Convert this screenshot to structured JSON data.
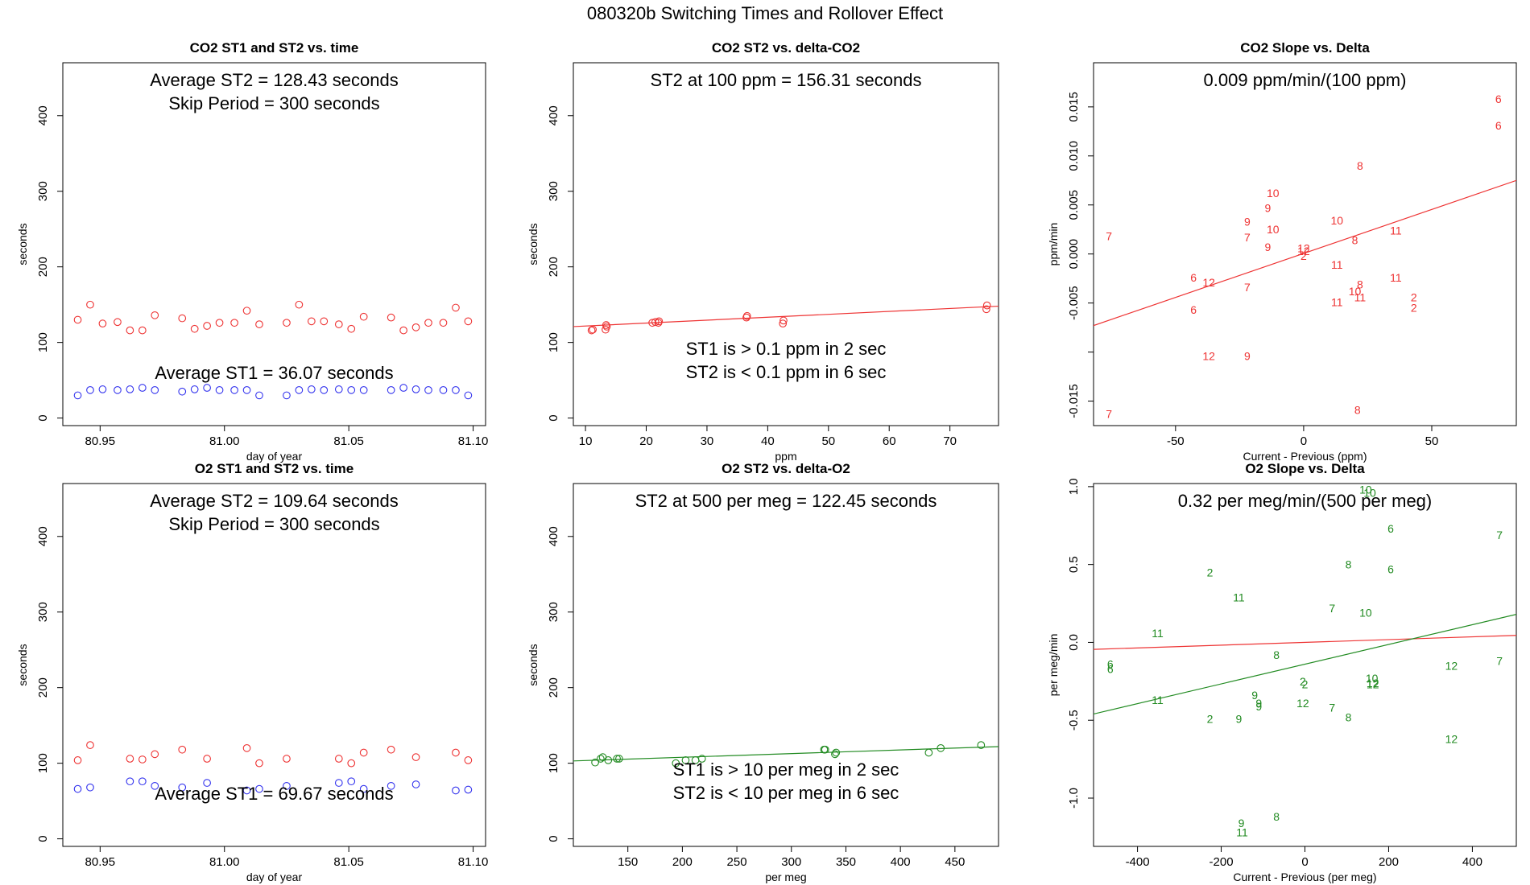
{
  "figure": {
    "title": "080320b   Switching Times and Rollover Effect",
    "colors": {
      "st2": "#ee3333",
      "st1": "#3333ee",
      "fit_co2": "#ee3333",
      "fit_o2": "#228b22",
      "zero_line_o2": "#ee3333"
    }
  },
  "chart_data": [
    {
      "id": "co2-time",
      "type": "scatter",
      "title": "CO2 ST1 and ST2 vs. time",
      "xlabel": "day of year",
      "ylabel": "seconds",
      "xlim": [
        80.935,
        81.105
      ],
      "ylim": [
        -10,
        470
      ],
      "xticks": [
        80.95,
        81.0,
        81.05,
        81.1
      ],
      "xticklabels": [
        "80.95",
        "81.00",
        "81.05",
        "81.10"
      ],
      "yticks": [
        0,
        100,
        200,
        300,
        400
      ],
      "annotations": [
        "Average ST2 =  128.43  seconds",
        "Skip Period =  300  seconds",
        "Average ST1 =  36.07  seconds"
      ],
      "series": [
        {
          "name": "ST2",
          "color": "#ee3333",
          "x": [
            80.941,
            80.946,
            80.951,
            80.957,
            80.962,
            80.967,
            80.972,
            80.983,
            80.988,
            80.993,
            80.998,
            81.004,
            81.009,
            81.014,
            81.025,
            81.03,
            81.035,
            81.04,
            81.046,
            81.051,
            81.056,
            81.067,
            81.072,
            81.077,
            81.082,
            81.088,
            81.093,
            81.098
          ],
          "y": [
            130,
            150,
            125,
            127,
            116,
            116,
            136,
            132,
            118,
            122,
            126,
            126,
            142,
            124,
            126,
            150,
            128,
            128,
            124,
            118,
            134,
            133,
            116,
            120,
            126,
            126,
            146,
            128
          ]
        },
        {
          "name": "ST1",
          "color": "#3333ee",
          "x": [
            80.941,
            80.946,
            80.951,
            80.957,
            80.962,
            80.967,
            80.972,
            80.983,
            80.988,
            80.993,
            80.998,
            81.004,
            81.009,
            81.014,
            81.025,
            81.03,
            81.035,
            81.04,
            81.046,
            81.051,
            81.056,
            81.067,
            81.072,
            81.077,
            81.082,
            81.088,
            81.093,
            81.098
          ],
          "y": [
            30,
            37,
            38,
            37,
            38,
            40,
            37,
            35,
            38,
            40,
            37,
            37,
            37,
            30,
            30,
            37,
            38,
            37,
            38,
            37,
            37,
            37,
            40,
            38,
            37,
            37,
            37,
            30
          ]
        }
      ]
    },
    {
      "id": "co2-delta",
      "type": "scatter",
      "title": "CO2 ST2 vs. delta-CO2",
      "xlabel": "ppm",
      "ylabel": "seconds",
      "xlim": [
        8,
        78
      ],
      "ylim": [
        -10,
        470
      ],
      "xticks": [
        10,
        20,
        30,
        40,
        50,
        60,
        70
      ],
      "xticklabels": [
        "10",
        "20",
        "30",
        "40",
        "50",
        "60",
        "70"
      ],
      "yticks": [
        0,
        100,
        200,
        300,
        400
      ],
      "annotations": [
        "ST2 at 100 ppm =  156.31  seconds",
        "ST1 is > 0.1 ppm in 2 sec",
        "ST2 is < 0.1 ppm in 6 sec"
      ],
      "fit": {
        "color": "#ee3333",
        "x": [
          8,
          78
        ],
        "y": [
          121,
          148
        ]
      },
      "series": [
        {
          "name": "ST2",
          "color": "#ee3333",
          "x": [
            11,
            11.2,
            13.3,
            13.5,
            13.4,
            21,
            21.5,
            22,
            22.1,
            36.5,
            36.6,
            42.5,
            42.6,
            76,
            76.1
          ],
          "y": [
            116,
            117,
            117,
            121,
            123,
            126,
            127,
            126,
            128,
            133,
            135,
            125,
            129,
            144,
            149
          ]
        }
      ]
    },
    {
      "id": "co2-slope",
      "type": "scatter",
      "title": "CO2 Slope vs. Delta",
      "xlabel": "Current - Previous (ppm)",
      "ylabel": "ppm/min",
      "xlim": [
        -82,
        83
      ],
      "ylim": [
        -0.0175,
        0.0195
      ],
      "xticks": [
        -50,
        0,
        50
      ],
      "xticklabels": [
        "-50",
        "0",
        "50"
      ],
      "yticks": [
        -0.015,
        -0.01,
        -0.005,
        0.0,
        0.005,
        0.01,
        0.015
      ],
      "yticklabels": [
        "-0.015",
        "",
        "-0.005",
        "0.000",
        "0.005",
        "0.010",
        "0.015"
      ],
      "annotations": [
        "0.009  ppm/min/(100 ppm)"
      ],
      "fit": {
        "color": "#ee3333",
        "x": [
          -82,
          83
        ],
        "y": [
          -0.0073,
          0.0075
        ]
      },
      "labeled_points": {
        "color": "#ee3333",
        "x": [
          -76,
          -76,
          -43,
          -43,
          -37,
          -37,
          -22,
          -22,
          -22,
          -22,
          -14,
          -14,
          -12,
          -12,
          0,
          0,
          0,
          13,
          13,
          13,
          20,
          20,
          21,
          22,
          22,
          22,
          36,
          36,
          43,
          43,
          76,
          76
        ],
        "y": [
          0.0018,
          -0.0163,
          -0.0024,
          -0.0057,
          -0.0029,
          -0.0104,
          0.0033,
          0.0017,
          -0.0034,
          -0.0104,
          0.0047,
          0.0007,
          0.0062,
          0.0025,
          0.0006,
          0.0003,
          -0.0002,
          0.0034,
          -0.0011,
          -0.0049,
          0.0014,
          -0.0038,
          -0.0159,
          0.009,
          -0.0031,
          -0.0044,
          0.0024,
          -0.0024,
          -0.0044,
          -0.0055,
          0.0158,
          0.0131
        ],
        "labels": [
          "7",
          "7",
          "6",
          "6",
          "12",
          "12",
          "9",
          "7",
          "7",
          "9",
          "9",
          "9",
          "10",
          "10",
          "12",
          "12",
          "2",
          "10",
          "11",
          "11",
          "8",
          "10",
          "8",
          "8",
          "8",
          "11",
          "11",
          "11",
          "2",
          "2",
          "6",
          "6"
        ]
      }
    },
    {
      "id": "o2-time",
      "type": "scatter",
      "title": "O2 ST1 and ST2 vs. time",
      "xlabel": "day of year",
      "ylabel": "seconds",
      "xlim": [
        80.935,
        81.105
      ],
      "ylim": [
        -10,
        470
      ],
      "xticks": [
        80.95,
        81.0,
        81.05,
        81.1
      ],
      "xticklabels": [
        "80.95",
        "81.00",
        "81.05",
        "81.10"
      ],
      "yticks": [
        0,
        100,
        200,
        300,
        400
      ],
      "annotations": [
        "Average ST2 =  109.64  seconds",
        "Skip Period =  300  seconds",
        "Average ST1 =  69.67  seconds"
      ],
      "series": [
        {
          "name": "ST2",
          "color": "#ee3333",
          "x": [
            80.941,
            80.946,
            80.962,
            80.967,
            80.972,
            80.983,
            80.993,
            81.009,
            81.014,
            81.025,
            81.046,
            81.051,
            81.056,
            81.067,
            81.077,
            81.093,
            81.098
          ],
          "y": [
            104,
            124,
            106,
            105,
            112,
            118,
            106,
            120,
            100,
            106,
            106,
            100,
            114,
            118,
            108,
            114,
            104
          ]
        },
        {
          "name": "ST1",
          "color": "#3333ee",
          "x": [
            80.941,
            80.946,
            80.962,
            80.967,
            80.972,
            80.983,
            80.993,
            81.009,
            81.014,
            81.025,
            81.046,
            81.051,
            81.056,
            81.067,
            81.077,
            81.093,
            81.098
          ],
          "y": [
            66,
            68,
            76,
            76,
            70,
            68,
            74,
            64,
            66,
            70,
            74,
            76,
            66,
            70,
            72,
            64,
            65
          ]
        }
      ]
    },
    {
      "id": "o2-delta",
      "type": "scatter",
      "title": "O2 ST2 vs. delta-O2",
      "xlabel": "per meg",
      "ylabel": "seconds",
      "xlim": [
        100,
        490
      ],
      "ylim": [
        -10,
        470
      ],
      "xticks": [
        150,
        200,
        250,
        300,
        350,
        400,
        450
      ],
      "xticklabels": [
        "150",
        "200",
        "250",
        "300",
        "350",
        "400",
        "450"
      ],
      "yticks": [
        0,
        100,
        200,
        300,
        400
      ],
      "annotations": [
        "ST2 at 500 per meg =  122.45  seconds",
        "ST1 is > 10 per meg in 2 sec",
        "ST2 is < 10 per meg in 6 sec"
      ],
      "fit": {
        "color": "#228b22",
        "x": [
          100,
          490
        ],
        "y": [
          103,
          122
        ]
      },
      "series": [
        {
          "name": "ST2",
          "color": "#228b22",
          "x": [
            120,
            125,
            127,
            132,
            140,
            142,
            194,
            203,
            212,
            218,
            330,
            331,
            340,
            341,
            426,
            437,
            474
          ],
          "y": [
            101,
            106,
            108,
            104,
            106,
            106,
            100,
            104,
            104,
            106,
            118,
            118,
            112,
            114,
            114,
            120,
            124
          ]
        }
      ]
    },
    {
      "id": "o2-slope",
      "type": "scatter",
      "title": "O2 Slope vs. Delta",
      "xlabel": "Current - Previous (per meg)",
      "ylabel": "per meg/min",
      "xlim": [
        -505,
        505
      ],
      "ylim": [
        -1.31,
        1.02
      ],
      "xticks": [
        -400,
        -200,
        0,
        200,
        400
      ],
      "xticklabels": [
        "-400",
        "-200",
        "0",
        "200",
        "400"
      ],
      "yticks": [
        -1.0,
        -0.5,
        0.0,
        0.5,
        1.0
      ],
      "yticklabels": [
        "-1.0",
        "-0.5",
        "0.0",
        "0.5",
        "1.0"
      ],
      "annotations": [
        "0.32  per meg/min/(500 per meg)"
      ],
      "fit": {
        "color": "#228b22",
        "x": [
          -505,
          505
        ],
        "y": [
          -0.46,
          0.18
        ]
      },
      "reference_line": {
        "color": "#ee3333",
        "x": [
          -505,
          505
        ],
        "y": [
          -0.045,
          0.045
        ]
      },
      "labeled_points": {
        "color": "#228b22",
        "x": [
          -465,
          -465,
          -352,
          -352,
          -227,
          -227,
          -158,
          -158,
          -152,
          -150,
          -120,
          -110,
          -110,
          -68,
          -68,
          -5,
          -5,
          0,
          65,
          65,
          104,
          104,
          145,
          145,
          155,
          160,
          162,
          162,
          205,
          205,
          350,
          350,
          465,
          465
        ],
        "y": [
          -0.14,
          -0.17,
          0.06,
          -0.37,
          0.45,
          -0.49,
          0.29,
          -0.49,
          -1.16,
          -1.22,
          -0.34,
          -0.39,
          -0.41,
          -0.08,
          -1.12,
          -0.25,
          -0.39,
          -0.27,
          0.22,
          -0.42,
          0.5,
          -0.48,
          0.19,
          0.98,
          0.96,
          -0.23,
          -0.26,
          -0.27,
          0.73,
          0.47,
          -0.15,
          -0.62,
          0.69,
          -0.12
        ],
        "labels": [
          "6",
          "6",
          "11",
          "11",
          "2",
          "2",
          "11",
          "9",
          "9",
          "11",
          "9",
          "9",
          "9",
          "8",
          "8",
          "2",
          "12",
          "2",
          "7",
          "7",
          "8",
          "8",
          "10",
          "10",
          "10",
          "10",
          "12",
          "12",
          "6",
          "6",
          "12",
          "12",
          "7",
          "7"
        ]
      }
    }
  ]
}
